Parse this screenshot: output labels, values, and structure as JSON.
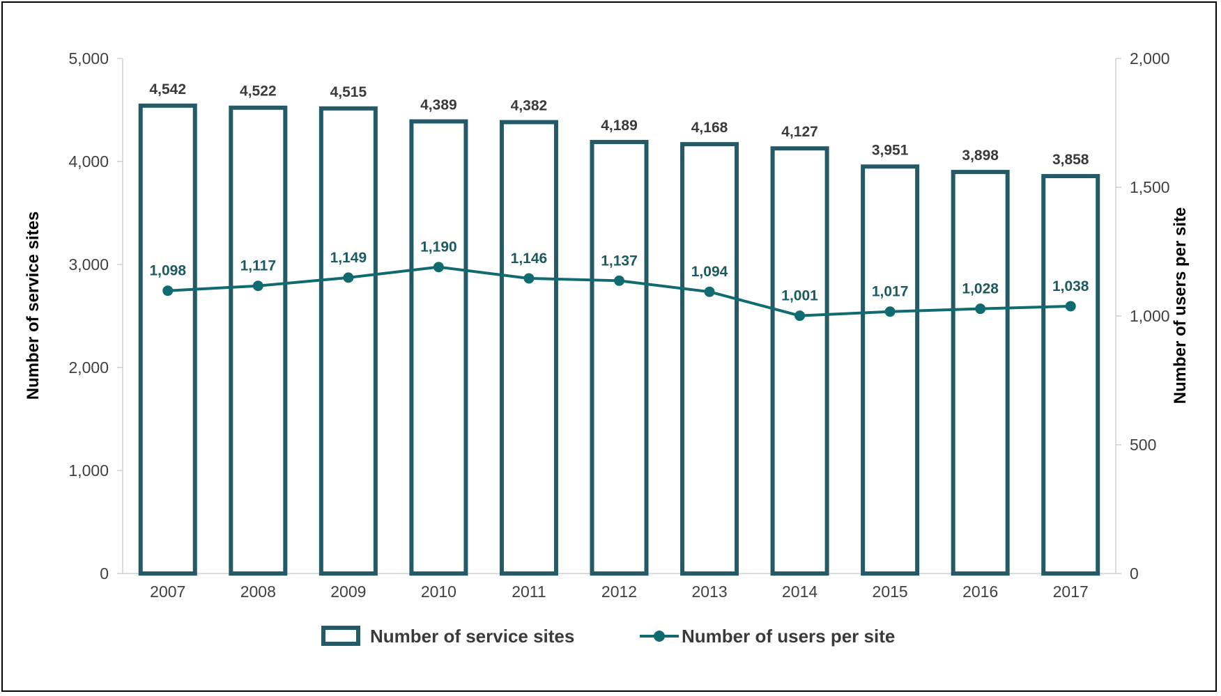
{
  "chart_data": {
    "type": "bar",
    "categories": [
      "2007",
      "2008",
      "2009",
      "2010",
      "2011",
      "2012",
      "2013",
      "2014",
      "2015",
      "2016",
      "2017"
    ],
    "series": [
      {
        "name": "Number of service sites",
        "type": "bar",
        "axis": "left",
        "values": [
          4542,
          4522,
          4515,
          4389,
          4382,
          4189,
          4168,
          4127,
          3951,
          3898,
          3858
        ],
        "labels": [
          "4,542",
          "4,522",
          "4,515",
          "4,389",
          "4,382",
          "4,189",
          "4,168",
          "4,127",
          "3,951",
          "3,898",
          "3,858"
        ]
      },
      {
        "name": "Number of users per site",
        "type": "line",
        "axis": "right",
        "values": [
          1098,
          1117,
          1149,
          1190,
          1146,
          1137,
          1094,
          1001,
          1017,
          1028,
          1038
        ],
        "labels": [
          "1,098",
          "1,117",
          "1,149",
          "1,190",
          "1,146",
          "1,137",
          "1,094",
          "1,001",
          "1,017",
          "1,028",
          "1,038"
        ]
      }
    ],
    "ylabel": "Number of service sites",
    "y2label": "Number of users per site",
    "ylim": [
      0,
      5000
    ],
    "y2lim": [
      0,
      2000
    ],
    "yticks": [
      "0",
      "1,000",
      "2,000",
      "3,000",
      "4,000",
      "5,000"
    ],
    "yticks_values": [
      0,
      1000,
      2000,
      3000,
      4000,
      5000
    ],
    "y2ticks": [
      "0",
      "500",
      "1,000",
      "1,500",
      "2,000"
    ],
    "y2ticks_values": [
      0,
      500,
      1000,
      1500,
      2000
    ],
    "grid": false,
    "legend_position": "bottom",
    "colors": {
      "bar_stroke": "#245a66",
      "line": "#0f6b70",
      "marker": "#0f6b70"
    }
  }
}
